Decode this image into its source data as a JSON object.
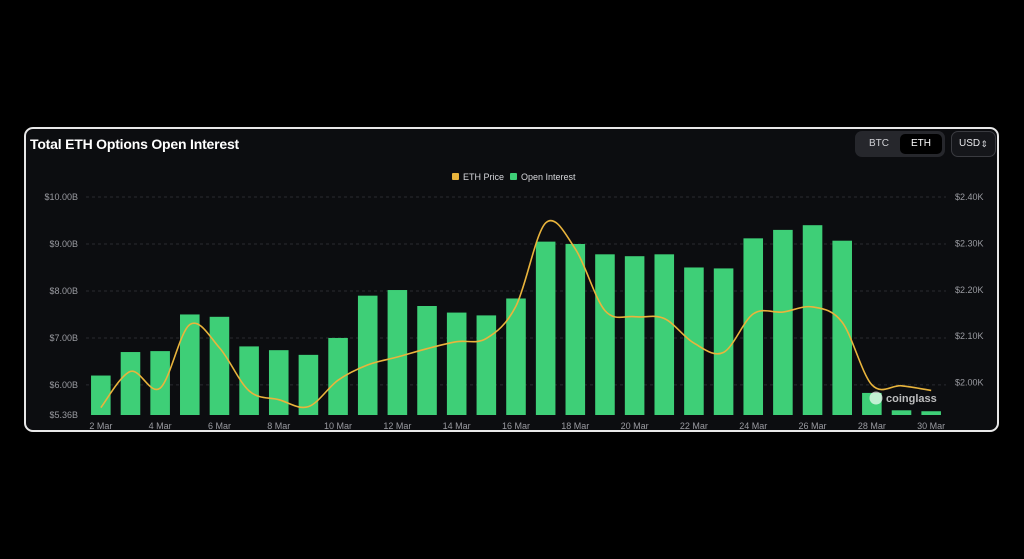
{
  "header": {
    "title": "Total ETH Options Open Interest"
  },
  "toggle": {
    "options": [
      "BTC",
      "ETH"
    ],
    "selected": "ETH"
  },
  "currency": {
    "value": "USD",
    "icon": "updown-chevron-icon"
  },
  "watermark": {
    "text": "coinglass",
    "icon": "coinglass-logo-icon"
  },
  "colors": {
    "background": "#0c0d10",
    "bar": "#3ecf77",
    "line": "#e9b43c",
    "grid": "#2a2b30",
    "text": "#9a9ba1"
  },
  "chart_data": {
    "type": "bar",
    "title": "Total ETH Options Open Interest",
    "legend": [
      {
        "name": "ETH Price",
        "color": "#e9b43c"
      },
      {
        "name": "Open Interest",
        "color": "#3ecf77"
      }
    ],
    "legend_position": "top-center",
    "x_tick_labels": [
      "2 Mar",
      "4 Mar",
      "6 Mar",
      "8 Mar",
      "10 Mar",
      "12 Mar",
      "14 Mar",
      "16 Mar",
      "18 Mar",
      "20 Mar",
      "22 Mar",
      "24 Mar",
      "26 Mar",
      "28 Mar",
      "30 Mar"
    ],
    "categories": [
      "2 Mar",
      "3 Mar",
      "4 Mar",
      "5 Mar",
      "6 Mar",
      "7 Mar",
      "8 Mar",
      "9 Mar",
      "10 Mar",
      "11 Mar",
      "12 Mar",
      "13 Mar",
      "14 Mar",
      "15 Mar",
      "16 Mar",
      "17 Mar",
      "18 Mar",
      "19 Mar",
      "20 Mar",
      "21 Mar",
      "22 Mar",
      "23 Mar",
      "24 Mar",
      "25 Mar",
      "26 Mar",
      "27 Mar",
      "28 Mar",
      "29 Mar",
      "30 Mar"
    ],
    "y_left": {
      "ticks": [
        "$5.36B",
        "$6.00B",
        "$7.00B",
        "$8.00B",
        "$9.00B",
        "$10.00B"
      ],
      "tick_values": [
        5.36,
        6,
        7,
        8,
        9,
        10
      ],
      "ylim": [
        5.36,
        10
      ],
      "unit": "B USD"
    },
    "y_right": {
      "ticks": [
        "$2.00K",
        "$2.10K",
        "$2.20K",
        "$2.30K",
        "$2.40K"
      ],
      "tick_values": [
        2.0,
        2.1,
        2.2,
        2.3,
        2.4
      ],
      "ylim": [
        1.93,
        2.4
      ],
      "unit": "K USD"
    },
    "grid": true,
    "series": [
      {
        "name": "Open Interest",
        "type": "bar",
        "axis": "left",
        "values": [
          6.2,
          6.7,
          6.72,
          7.5,
          7.45,
          6.82,
          6.74,
          6.64,
          7.0,
          7.9,
          8.02,
          7.68,
          7.54,
          7.48,
          7.84,
          9.05,
          9.0,
          8.78,
          8.74,
          8.78,
          8.5,
          8.48,
          9.12,
          9.3,
          9.4,
          9.07,
          5.83,
          5.46,
          5.44
        ]
      },
      {
        "name": "ETH Price",
        "type": "line",
        "axis": "right",
        "values": [
          1.946,
          2.024,
          1.988,
          2.125,
          2.075,
          1.982,
          1.963,
          1.948,
          2.005,
          2.038,
          2.055,
          2.073,
          2.088,
          2.095,
          2.165,
          2.344,
          2.288,
          2.155,
          2.142,
          2.138,
          2.085,
          2.065,
          2.148,
          2.152,
          2.163,
          2.13,
          1.995,
          1.993,
          1.983
        ]
      }
    ]
  }
}
